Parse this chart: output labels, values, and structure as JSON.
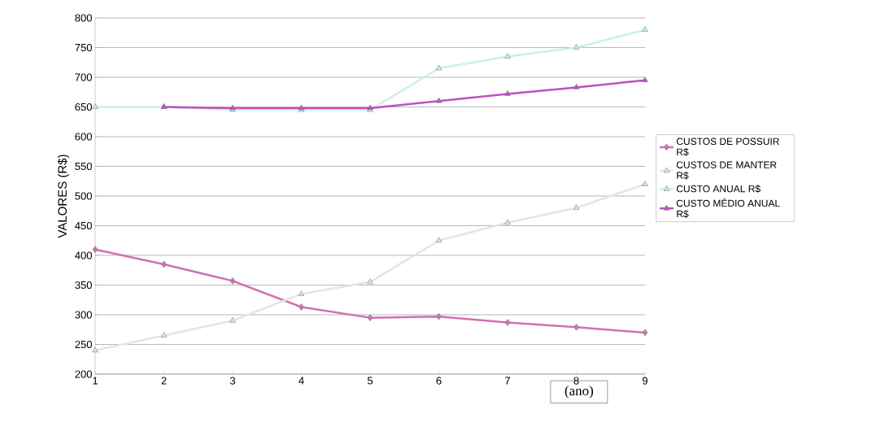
{
  "chart_data": {
    "type": "line",
    "xlabel": "(ano)",
    "ylabel": "VALORES (R$)",
    "x": [
      1,
      2,
      3,
      4,
      5,
      6,
      7,
      8,
      9
    ],
    "series": [
      {
        "name": "CUSTOS DE POSSUIR R$",
        "color": "#d070b0",
        "marker": "diamond",
        "values": [
          410,
          385,
          357,
          313,
          295,
          297,
          287,
          279,
          270
        ]
      },
      {
        "name": "CUSTOS DE MANTER R$",
        "color": "#e4e4e4",
        "marker": "triangle",
        "values": [
          240,
          265,
          290,
          335,
          355,
          425,
          455,
          480,
          520
        ]
      },
      {
        "name": "CUSTO ANUAL R$",
        "color": "#c8f0f0",
        "marker": "triangle",
        "values": [
          650,
          650,
          645,
          645,
          645,
          715,
          735,
          750,
          780
        ]
      },
      {
        "name": "CUSTO MÉDIO ANUAL R$",
        "color": "#c050c0",
        "marker": "triangle",
        "values": [
          null,
          650,
          648,
          648,
          648,
          660,
          672,
          683,
          695
        ]
      }
    ],
    "xlim": [
      1,
      9
    ],
    "ylim": [
      200,
      800
    ],
    "xticks": [
      1,
      2,
      3,
      4,
      5,
      6,
      7,
      8,
      9
    ],
    "yticks": [
      200,
      250,
      300,
      350,
      400,
      450,
      500,
      550,
      600,
      650,
      700,
      750,
      800
    ],
    "grid": "y",
    "legend": "right"
  }
}
